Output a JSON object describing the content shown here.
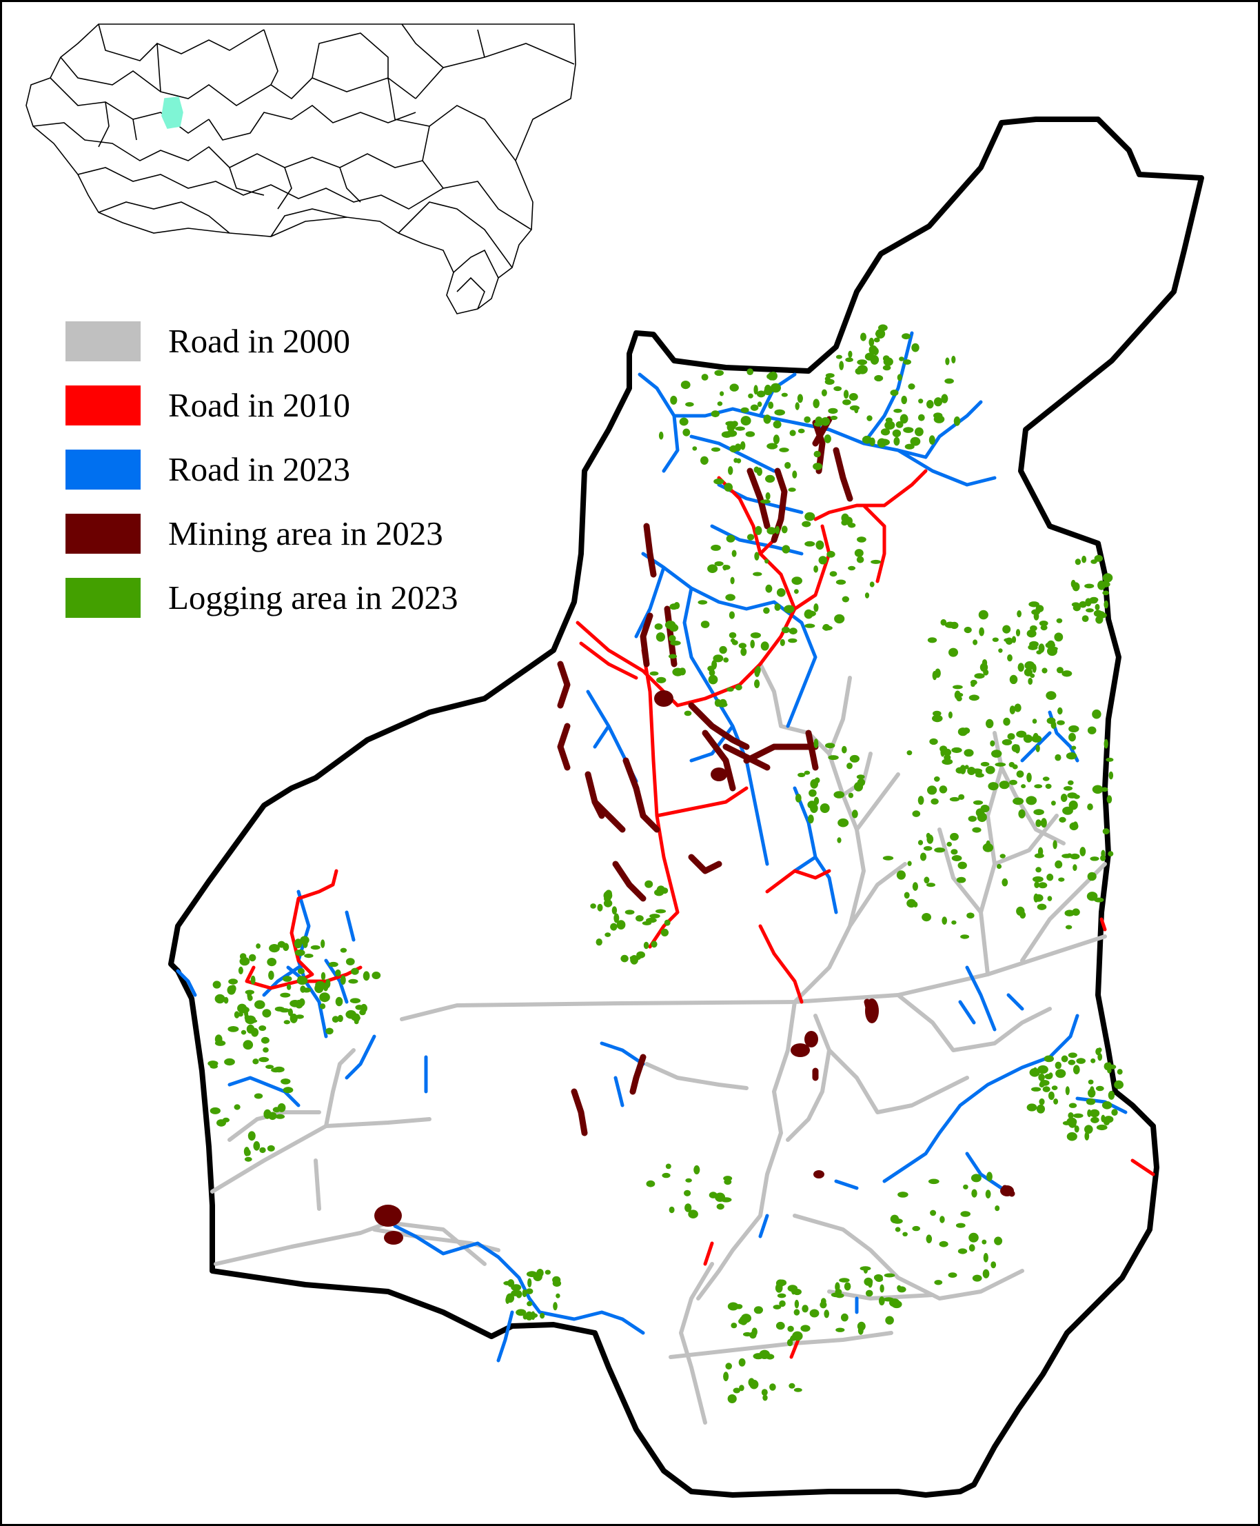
{
  "legend": {
    "items": [
      {
        "label": "Road in 2000",
        "color": "#c0c0c0"
      },
      {
        "label": "Road in 2010",
        "color": "#ff0000"
      },
      {
        "label": "Road in 2023",
        "color": "#0070f0"
      },
      {
        "label": "Mining area in 2023",
        "color": "#6b0000"
      },
      {
        "label": "Logging area in 2023",
        "color": "#43a000"
      }
    ]
  },
  "inset_map": {
    "highlight_color": "#7ff5d5",
    "line_color": "#000000"
  },
  "map": {
    "boundary_color": "#000000"
  }
}
